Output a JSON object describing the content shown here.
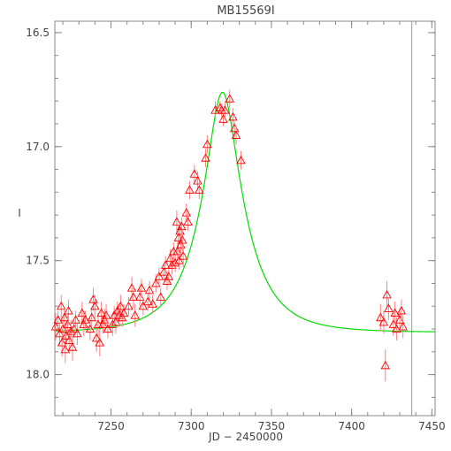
{
  "chart_data": {
    "type": "scatter",
    "title": "MB15569I",
    "xlabel": "JD − 2450000",
    "ylabel": "I",
    "xlim": [
      7215,
      7452
    ],
    "ylim": [
      18.18,
      16.45
    ],
    "y_reversed": true,
    "grid": false,
    "x_ticks": [
      7250,
      7300,
      7350,
      7400,
      7450
    ],
    "y_ticks": [
      16.5,
      17.0,
      17.5,
      18.0
    ],
    "y_tick_labels": [
      "16.5",
      "17.0",
      "17.5",
      "18.0"
    ],
    "vertical_marker_x": 7437.5,
    "colors": {
      "points": "#ff0000",
      "errorbars": "#ff8080",
      "model": "#00dd00",
      "axes": "#888888",
      "marker_line": "#999999"
    },
    "series": [
      {
        "kind": "observations",
        "marker": "triangle-open",
        "points": [
          [
            7215.5,
            17.79,
            0.06
          ],
          [
            7217,
            17.76,
            0.04
          ],
          [
            7218,
            17.82,
            0.05
          ],
          [
            7219,
            17.7,
            0.05
          ],
          [
            7219.5,
            17.86,
            0.06
          ],
          [
            7220,
            17.8,
            0.05
          ],
          [
            7221,
            17.75,
            0.04
          ],
          [
            7221.5,
            17.89,
            0.06
          ],
          [
            7222,
            17.83,
            0.06
          ],
          [
            7223,
            17.78,
            0.04
          ],
          [
            7223.5,
            17.72,
            0.05
          ],
          [
            7224,
            17.85,
            0.05
          ],
          [
            7225,
            17.81,
            0.05
          ],
          [
            7226,
            17.88,
            0.06
          ],
          [
            7227,
            17.8,
            0.04
          ],
          [
            7228,
            17.76,
            0.04
          ],
          [
            7229,
            17.82,
            0.05
          ],
          [
            7232,
            17.73,
            0.05
          ],
          [
            7233,
            17.78,
            0.05
          ],
          [
            7234,
            17.76,
            0.04
          ],
          [
            7237,
            17.8,
            0.05
          ],
          [
            7238,
            17.75,
            0.04
          ],
          [
            7239,
            17.67,
            0.05
          ],
          [
            7240,
            17.7,
            0.05
          ],
          [
            7241,
            17.84,
            0.06
          ],
          [
            7242,
            17.78,
            0.05
          ],
          [
            7243,
            17.86,
            0.06
          ],
          [
            7244,
            17.73,
            0.05
          ],
          [
            7245,
            17.78,
            0.04
          ],
          [
            7246,
            17.76,
            0.05
          ],
          [
            7247,
            17.74,
            0.05
          ],
          [
            7248,
            17.8,
            0.04
          ],
          [
            7251,
            17.78,
            0.05
          ],
          [
            7252,
            17.74,
            0.04
          ],
          [
            7253,
            17.77,
            0.05
          ],
          [
            7254,
            17.72,
            0.04
          ],
          [
            7255,
            17.74,
            0.05
          ],
          [
            7256,
            17.7,
            0.05
          ],
          [
            7257,
            17.75,
            0.04
          ],
          [
            7258,
            17.73,
            0.04
          ],
          [
            7261,
            17.7,
            0.04
          ],
          [
            7263,
            17.62,
            0.05
          ],
          [
            7264,
            17.66,
            0.05
          ],
          [
            7265,
            17.74,
            0.05
          ],
          [
            7268,
            17.66,
            0.04
          ],
          [
            7269,
            17.62,
            0.04
          ],
          [
            7270,
            17.7,
            0.04
          ],
          [
            7273,
            17.68,
            0.04
          ],
          [
            7274,
            17.63,
            0.04
          ],
          [
            7276,
            17.69,
            0.04
          ],
          [
            7278,
            17.6,
            0.04
          ],
          [
            7280,
            17.57,
            0.04
          ],
          [
            7281,
            17.66,
            0.04
          ],
          [
            7283,
            17.55,
            0.04
          ],
          [
            7284,
            17.52,
            0.04
          ],
          [
            7285,
            17.59,
            0.04
          ],
          [
            7286,
            17.57,
            0.04
          ],
          [
            7287,
            17.49,
            0.04
          ],
          [
            7288,
            17.52,
            0.04
          ],
          [
            7289,
            17.46,
            0.04
          ],
          [
            7290,
            17.51,
            0.04
          ],
          [
            7291,
            17.33,
            0.05
          ],
          [
            7291.5,
            17.46,
            0.04
          ],
          [
            7292,
            17.4,
            0.05
          ],
          [
            7292.5,
            17.5,
            0.04
          ],
          [
            7293,
            17.37,
            0.04
          ],
          [
            7293.5,
            17.43,
            0.05
          ],
          [
            7294,
            17.35,
            0.04
          ],
          [
            7294.5,
            17.41,
            0.05
          ],
          [
            7295,
            17.48,
            0.05
          ],
          [
            7297,
            17.29,
            0.04
          ],
          [
            7298,
            17.33,
            0.04
          ],
          [
            7299,
            17.19,
            0.04
          ],
          [
            7302,
            17.12,
            0.04
          ],
          [
            7304,
            17.15,
            0.04
          ],
          [
            7305,
            17.19,
            0.04
          ],
          [
            7309,
            17.05,
            0.04
          ],
          [
            7310,
            16.99,
            0.04
          ],
          [
            7315,
            16.84,
            0.04
          ],
          [
            7318,
            16.83,
            0.03
          ],
          [
            7319,
            16.84,
            0.03
          ],
          [
            7320,
            16.88,
            0.03
          ],
          [
            7321,
            16.84,
            0.04
          ],
          [
            7324,
            16.79,
            0.04
          ],
          [
            7326,
            16.87,
            0.04
          ],
          [
            7327,
            16.92,
            0.04
          ],
          [
            7328,
            16.95,
            0.04
          ],
          [
            7331,
            17.06,
            0.04
          ],
          [
            7418,
            17.75,
            0.06
          ],
          [
            7420,
            17.77,
            0.05
          ],
          [
            7421,
            17.96,
            0.07
          ],
          [
            7422,
            17.65,
            0.06
          ],
          [
            7423,
            17.71,
            0.05
          ],
          [
            7426,
            17.78,
            0.05
          ],
          [
            7427,
            17.73,
            0.05
          ],
          [
            7428,
            17.8,
            0.05
          ],
          [
            7430,
            17.76,
            0.05
          ],
          [
            7431,
            17.72,
            0.05
          ],
          [
            7432,
            17.79,
            0.05
          ]
        ]
      },
      {
        "kind": "model",
        "line_style": "solid",
        "model_params": {
          "baseline": 17.815,
          "t0": 7319.5,
          "u0": 0.32,
          "tE": 28,
          "fs": 0.73
        }
      }
    ]
  }
}
